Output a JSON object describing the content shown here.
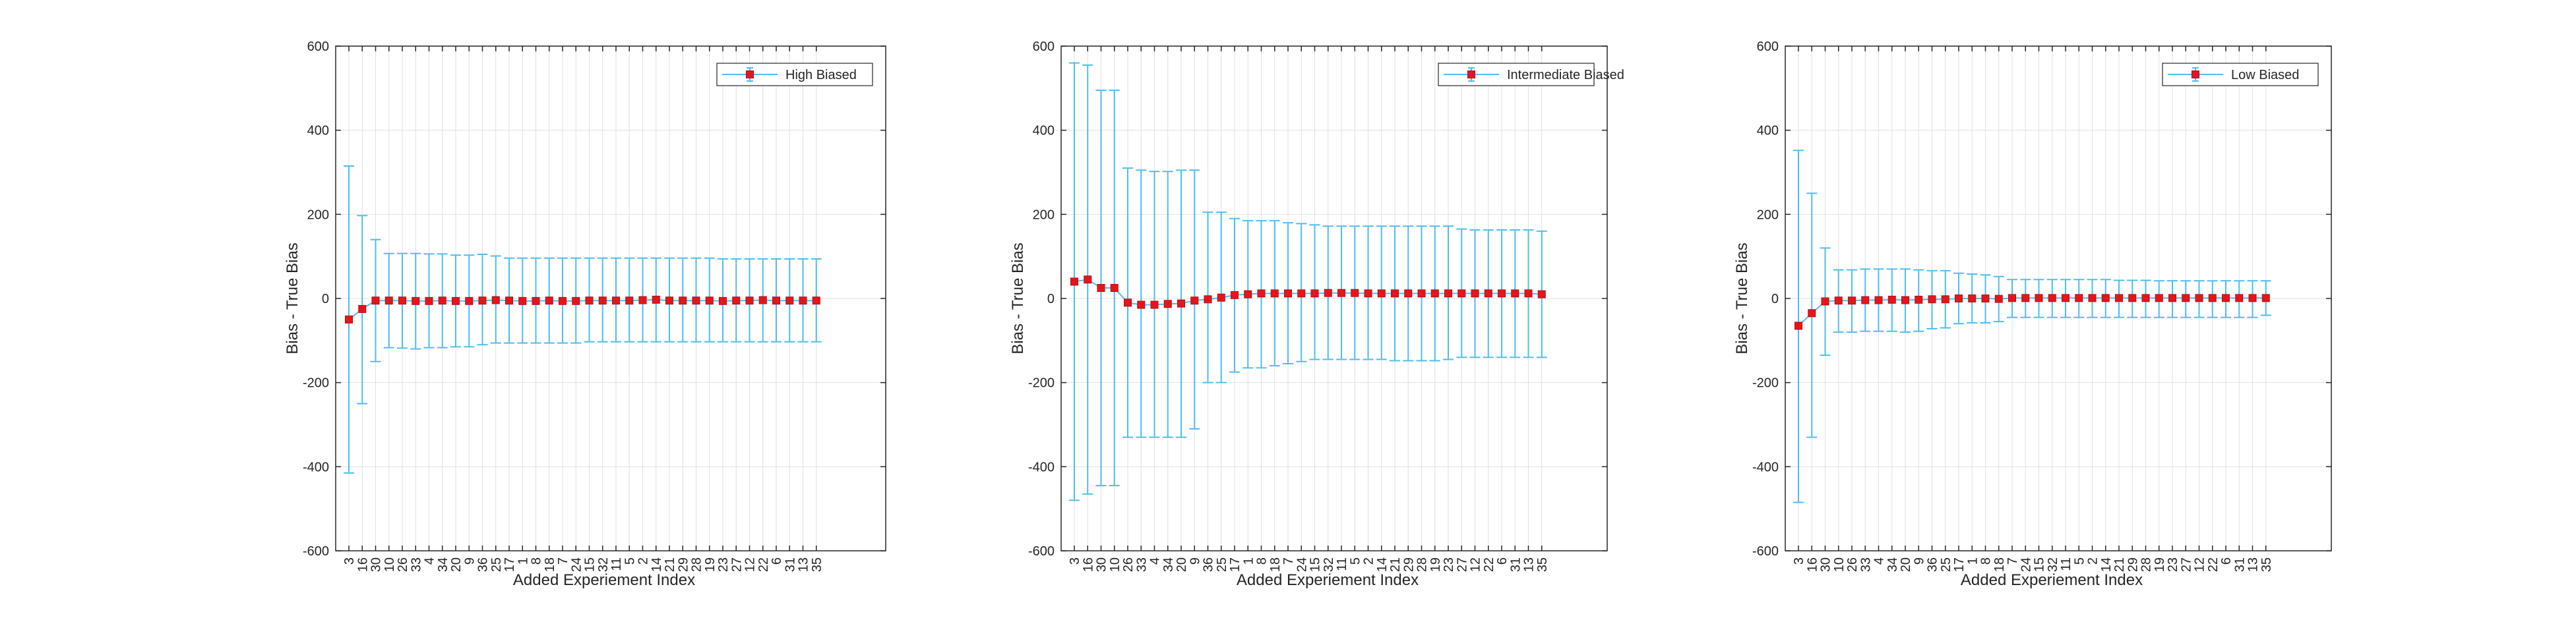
{
  "figure": {
    "xlabel": "Added Experiement Index",
    "ylabel": "Bias - True Bias",
    "colors": {
      "errorbar": "#4DBEEE",
      "marker": "#E8141A",
      "marker_edge": "#B00F14",
      "grid": "#e1e1e1",
      "axes": "#262626"
    }
  },
  "chart_data": [
    {
      "type": "line",
      "title": "",
      "xlabel": "Added Experiement Index",
      "ylabel": "Bias - True Bias",
      "ylim": [
        -600,
        600
      ],
      "yticks": [
        -600,
        -400,
        -200,
        0,
        200,
        400,
        600
      ],
      "grid": true,
      "legend_location": "top-right",
      "categories": [
        "3",
        "16",
        "30",
        "10",
        "26",
        "33",
        "4",
        "34",
        "20",
        "9",
        "36",
        "25",
        "17",
        "1",
        "8",
        "18",
        "7",
        "24",
        "15",
        "32",
        "11",
        "5",
        "2",
        "14",
        "21",
        "29",
        "28",
        "19",
        "23",
        "27",
        "12",
        "22",
        "6",
        "31",
        "13",
        "35"
      ],
      "series": [
        {
          "name": "High Biased",
          "values": [
            -50,
            -25,
            -5,
            -5,
            -5,
            -6,
            -6,
            -5,
            -6,
            -6,
            -5,
            -4,
            -5,
            -6,
            -6,
            -5,
            -6,
            -6,
            -5,
            -5,
            -5,
            -5,
            -4,
            -3,
            -5,
            -5,
            -5,
            -5,
            -6,
            -5,
            -5,
            -4,
            -5,
            -5,
            -5,
            -5
          ],
          "lower": [
            -415,
            -250,
            -150,
            -117,
            -118,
            -120,
            -117,
            -117,
            -115,
            -115,
            -110,
            -106,
            -106,
            -106,
            -106,
            -106,
            -106,
            -106,
            -103,
            -103,
            -103,
            -103,
            -103,
            -103,
            -103,
            -103,
            -103,
            -103,
            -103,
            -103,
            -103,
            -103,
            -103,
            -103,
            -103,
            -103
          ],
          "upper": [
            315,
            197,
            140,
            107,
            107,
            107,
            106,
            106,
            103,
            103,
            105,
            101,
            96,
            96,
            96,
            96,
            96,
            96,
            96,
            96,
            96,
            96,
            96,
            96,
            96,
            96,
            96,
            96,
            94,
            94,
            94,
            94,
            94,
            94,
            94,
            94
          ]
        }
      ]
    },
    {
      "type": "line",
      "title": "",
      "xlabel": "Added Experiement Index",
      "ylabel": "Bias - True Bias",
      "ylim": [
        -600,
        600
      ],
      "yticks": [
        -600,
        -400,
        -200,
        0,
        200,
        400,
        600
      ],
      "grid": true,
      "legend_location": "top-right",
      "categories": [
        "3",
        "16",
        "30",
        "10",
        "26",
        "33",
        "4",
        "34",
        "20",
        "9",
        "36",
        "25",
        "17",
        "1",
        "8",
        "18",
        "7",
        "24",
        "15",
        "32",
        "11",
        "5",
        "2",
        "14",
        "21",
        "29",
        "28",
        "19",
        "23",
        "27",
        "12",
        "22",
        "6",
        "31",
        "13",
        "35"
      ],
      "series": [
        {
          "name": "Intermediate Biased",
          "values": [
            40,
            45,
            25,
            25,
            -10,
            -15,
            -15,
            -13,
            -12,
            -5,
            -2,
            2,
            8,
            10,
            12,
            12,
            12,
            12,
            12,
            13,
            13,
            13,
            12,
            12,
            12,
            12,
            12,
            12,
            12,
            12,
            12,
            12,
            12,
            12,
            12,
            10
          ],
          "lower": [
            -480,
            -465,
            -445,
            -445,
            -330,
            -330,
            -330,
            -330,
            -330,
            -310,
            -200,
            -200,
            -175,
            -165,
            -165,
            -160,
            -155,
            -150,
            -145,
            -145,
            -145,
            -145,
            -145,
            -145,
            -148,
            -148,
            -148,
            -148,
            -145,
            -140,
            -140,
            -140,
            -140,
            -140,
            -140,
            -140
          ],
          "upper": [
            560,
            555,
            495,
            495,
            310,
            305,
            302,
            302,
            305,
            305,
            205,
            205,
            190,
            185,
            185,
            185,
            180,
            178,
            175,
            172,
            172,
            172,
            172,
            172,
            172,
            172,
            172,
            172,
            172,
            165,
            163,
            163,
            163,
            163,
            163,
            160
          ]
        }
      ]
    },
    {
      "type": "line",
      "title": "",
      "xlabel": "Added Experiement Index",
      "ylabel": "Bias - True Bias",
      "ylim": [
        -600,
        600
      ],
      "yticks": [
        -600,
        -400,
        -200,
        0,
        200,
        400,
        600
      ],
      "grid": true,
      "legend_location": "top-right",
      "categories": [
        "3",
        "16",
        "30",
        "10",
        "26",
        "33",
        "4",
        "34",
        "20",
        "9",
        "36",
        "25",
        "17",
        "1",
        "8",
        "18",
        "7",
        "24",
        "15",
        "32",
        "11",
        "5",
        "2",
        "14",
        "21",
        "29",
        "28",
        "19",
        "23",
        "27",
        "12",
        "22",
        "6",
        "31",
        "13",
        "35"
      ],
      "series": [
        {
          "name": "Low Biased",
          "values": [
            -65,
            -35,
            -7,
            -5,
            -5,
            -4,
            -4,
            -3,
            -4,
            -3,
            -2,
            -2,
            0,
            0,
            0,
            -1,
            1,
            1,
            1,
            1,
            1,
            1,
            1,
            1,
            1,
            1,
            1,
            1,
            1,
            1,
            1,
            1,
            1,
            1,
            1,
            1
          ],
          "lower": [
            -485,
            -330,
            -135,
            -80,
            -80,
            -78,
            -78,
            -78,
            -80,
            -78,
            -72,
            -70,
            -60,
            -58,
            -58,
            -55,
            -45,
            -45,
            -45,
            -45,
            -45,
            -45,
            -45,
            -45,
            -45,
            -45,
            -45,
            -45,
            -45,
            -45,
            -45,
            -45,
            -45,
            -45,
            -45,
            -40
          ],
          "upper": [
            352,
            250,
            120,
            68,
            68,
            70,
            70,
            70,
            70,
            68,
            66,
            66,
            60,
            58,
            56,
            52,
            45,
            45,
            45,
            45,
            45,
            45,
            45,
            45,
            43,
            43,
            43,
            42,
            42,
            42,
            42,
            42,
            42,
            42,
            42,
            42
          ]
        }
      ]
    }
  ]
}
